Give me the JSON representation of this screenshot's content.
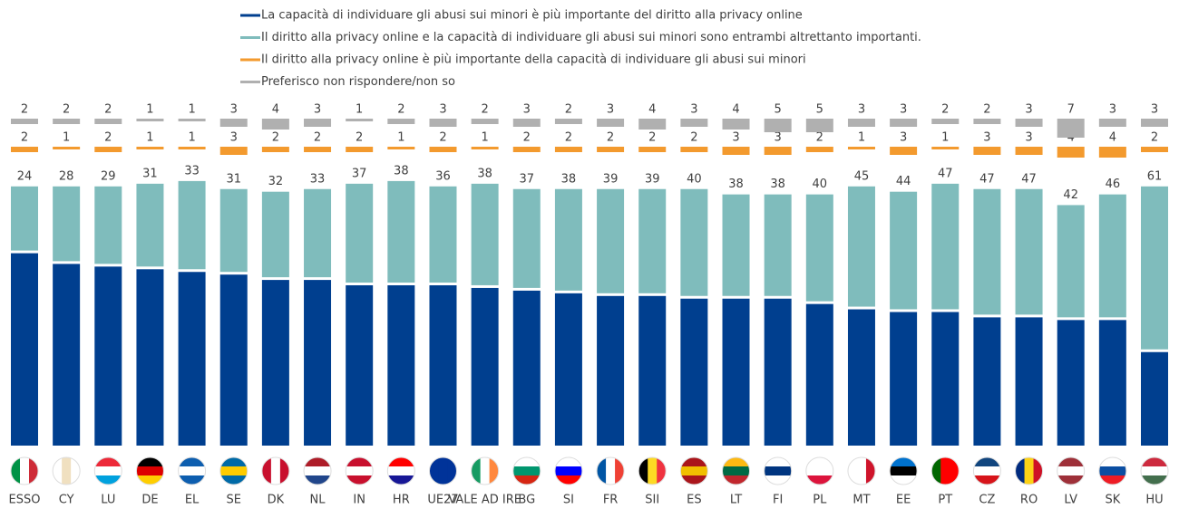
{
  "chart_data": {
    "type": "bar",
    "categories": [
      "ESSO",
      "CY",
      "LU",
      "DE",
      "EL",
      "SE",
      "DK",
      "NL",
      "IN",
      "HR",
      "UE27",
      "VALE AD IRE",
      "BG",
      "SI",
      "FR",
      "SII",
      "ES",
      "LT",
      "FI",
      "PL",
      "MT",
      "EE",
      "PT",
      "CZ",
      "RO",
      "LV",
      "SK",
      "HU"
    ],
    "series": [
      {
        "name": "La capacità di individuare gli abusi sui minori è più importante del diritto alla privacy online",
        "color": "#003f8f",
        "values": [
          72,
          68,
          67,
          66,
          65,
          64,
          62,
          62,
          60,
          60,
          60,
          59,
          58,
          57,
          56,
          56,
          55,
          55,
          55,
          53,
          51,
          50,
          50,
          48,
          48,
          47,
          47,
          35
        ]
      },
      {
        "name": "Il diritto alla privacy online e la capacità di individuare gli abusi sui minori sono entrambi altrettanto importanti.",
        "color": "#7fbcbc",
        "values": [
          24,
          28,
          29,
          31,
          33,
          31,
          32,
          33,
          37,
          38,
          36,
          38,
          37,
          38,
          39,
          39,
          40,
          38,
          38,
          40,
          45,
          44,
          47,
          47,
          47,
          42,
          46,
          61
        ]
      },
      {
        "name": "Il diritto alla privacy online è più importante della capacità di individuare gli abusi sui minori",
        "color": "#f39a2e",
        "values": [
          2,
          1,
          2,
          1,
          1,
          3,
          2,
          2,
          2,
          1,
          2,
          1,
          2,
          2,
          2,
          2,
          2,
          3,
          3,
          2,
          1,
          3,
          1,
          3,
          3,
          4,
          4,
          2
        ]
      },
      {
        "name": "Preferisco non rispondere/non so",
        "color": "#b0b0b0",
        "values": [
          2,
          2,
          2,
          1,
          1,
          3,
          4,
          3,
          1,
          2,
          3,
          2,
          3,
          2,
          3,
          4,
          3,
          4,
          5,
          5,
          3,
          3,
          2,
          2,
          3,
          7,
          3,
          3
        ]
      }
    ]
  }
}
